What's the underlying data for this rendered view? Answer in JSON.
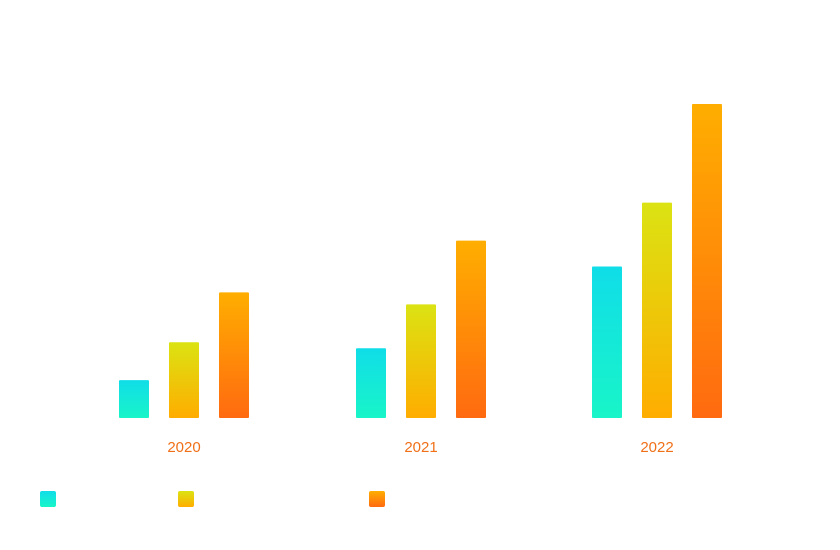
{
  "chart_data": {
    "type": "bar",
    "title": "",
    "xlabel": "",
    "ylabel": "",
    "categories": [
      "2020",
      "2021",
      "2022"
    ],
    "series": [
      {
        "values": [
          38,
          70,
          152
        ],
        "color_top": "#10dde8",
        "color_bottom": "#19f5c8"
      },
      {
        "values": [
          76,
          114,
          216
        ],
        "color_top": "#dbe313",
        "color_bottom": "#ffad00"
      },
      {
        "values": [
          126,
          178,
          315
        ],
        "color_top": "#ffae00",
        "color_bottom": "#ff6a10"
      }
    ],
    "ylim": [
      0,
      315
    ],
    "grid": false,
    "legend": {
      "placement": "bottom-left"
    },
    "tick_color": "#f07018"
  }
}
